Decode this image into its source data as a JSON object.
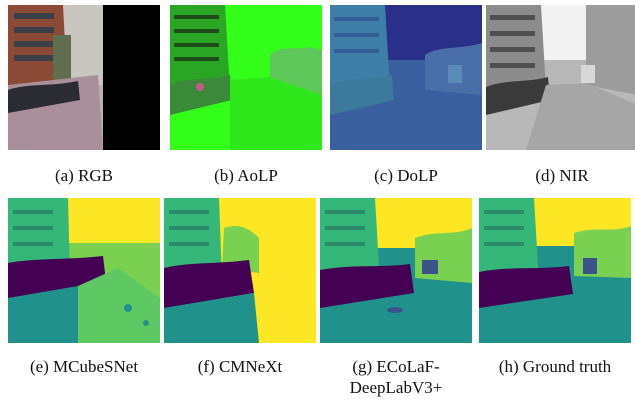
{
  "figure": {
    "panels": [
      {
        "id": "a",
        "caption": "(a) RGB"
      },
      {
        "id": "b",
        "caption": "(b) AoLP"
      },
      {
        "id": "c",
        "caption": "(c) DoLP"
      },
      {
        "id": "d",
        "caption": "(d) NIR"
      },
      {
        "id": "e",
        "caption": "(e) MCubeSNet"
      },
      {
        "id": "f",
        "caption": "(f) CMNeXt"
      },
      {
        "id": "g",
        "caption_line1": "(g) ECoLaF-",
        "caption_line2": "DeepLabV3+"
      },
      {
        "id": "h",
        "caption": "(h) Ground truth"
      }
    ],
    "colors": {
      "segmentation_sky": "#fde725",
      "segmentation_building": "#35b779",
      "segmentation_vegetation": "#7ad151",
      "segmentation_bicycle": "#440154",
      "segmentation_road": "#21918c",
      "segmentation_sidewalk": "#2a9d6e",
      "aolp_green": "#33ff1a",
      "dolp_blue": "#3b5fa0"
    }
  }
}
